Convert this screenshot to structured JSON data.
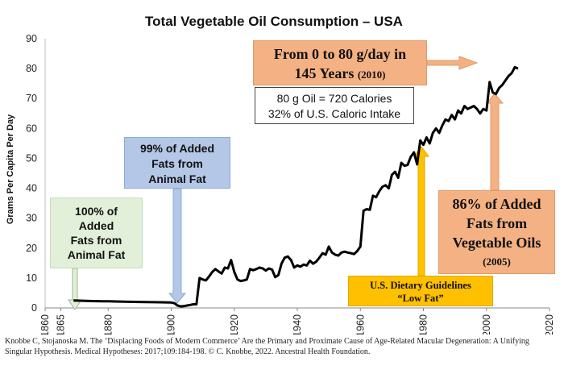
{
  "chart_data": {
    "type": "line",
    "title": "Total Vegetable Oil Consumption – USA",
    "xlabel": "",
    "ylabel": "Grams Per Capita Per Day",
    "xlim": [
      1860,
      2020
    ],
    "ylim": [
      0,
      90
    ],
    "x_ticks": [
      "1860",
      "1865",
      "1880",
      "1900",
      "1920",
      "1940",
      "1960",
      "1980",
      "2000",
      "2020"
    ],
    "y_ticks": [
      "0",
      "10",
      "20",
      "30",
      "40",
      "50",
      "60",
      "70",
      "80",
      "90"
    ],
    "grid": false,
    "series": [
      {
        "color": "#000000",
        "x": [
          1869,
          1875,
          1880,
          1885,
          1890,
          1895,
          1900,
          1901,
          1902,
          1903,
          1904,
          1905,
          1906,
          1907,
          1908,
          1909,
          1910,
          1911,
          1912,
          1913,
          1914,
          1915,
          1916,
          1917,
          1918,
          1919,
          1920,
          1921,
          1922,
          1923,
          1924,
          1925,
          1926,
          1927,
          1928,
          1929,
          1930,
          1931,
          1932,
          1933,
          1934,
          1935,
          1936,
          1937,
          1938,
          1939,
          1940,
          1941,
          1942,
          1943,
          1944,
          1945,
          1946,
          1947,
          1948,
          1949,
          1950,
          1951,
          1952,
          1953,
          1954,
          1955,
          1956,
          1957,
          1958,
          1959,
          1960,
          1961,
          1962,
          1963,
          1964,
          1965,
          1966,
          1967,
          1968,
          1969,
          1970,
          1971,
          1972,
          1973,
          1974,
          1975,
          1976,
          1977,
          1978,
          1979,
          1980,
          1981,
          1982,
          1983,
          1984,
          1985,
          1986,
          1987,
          1988,
          1989,
          1990,
          1991,
          1992,
          1993,
          1994,
          1995,
          1996,
          1997,
          1998,
          1999,
          2000,
          2001,
          2002,
          2003,
          2004,
          2005,
          2006,
          2007,
          2008,
          2009,
          2010
        ],
        "values": [
          2.5,
          2.3,
          2.2,
          2.1,
          2.0,
          1.9,
          1.8,
          1.6,
          0.8,
          0.5,
          0.6,
          0.8,
          1.0,
          1.2,
          1.2,
          10,
          9.5,
          9.2,
          10.5,
          12,
          13,
          12.2,
          11.5,
          13.5,
          13.2,
          16,
          12,
          9.5,
          9,
          9.2,
          9.5,
          13,
          12.6,
          13,
          13.5,
          13.2,
          12.5,
          13.2,
          12.8,
          10.3,
          11,
          14.8,
          16.8,
          17.2,
          16,
          13.5,
          14.2,
          13.8,
          14.5,
          14.2,
          15.8,
          14.8,
          15.5,
          16.8,
          18.3,
          17.8,
          20.5,
          18.5,
          17.8,
          17.5,
          18.5,
          18.8,
          18.5,
          18.3,
          18,
          19,
          20.5,
          32.5,
          33,
          32.8,
          37.5,
          37,
          39,
          40.5,
          41,
          40,
          44.5,
          45.5,
          43.5,
          48.5,
          47.5,
          47.8,
          50.5,
          52,
          48,
          56,
          54.5,
          57,
          55,
          58.5,
          60,
          58.5,
          61,
          63,
          62.5,
          64.5,
          63,
          66,
          65,
          67.5,
          66.5,
          67,
          67.5,
          66.5,
          65,
          66.5,
          66,
          75.5,
          72,
          71.5,
          73.5,
          74.5,
          76,
          77.5,
          78.5,
          80.5,
          80
        ]
      }
    ],
    "annotations": {
      "green_box": [
        "100% of",
        "Added",
        "Fats from",
        "Animal Fat"
      ],
      "blue_box": [
        "99% of Added",
        "Fats from",
        "Animal Fat"
      ],
      "orange_top_line1": "From 0 to 80 g/day in",
      "orange_top_line2a": "145 Years",
      "orange_top_line2b": "(2010)",
      "white_box": [
        "80 g Oil = 720 Calories",
        "32% of U.S. Caloric Intake"
      ],
      "orange_right": [
        "86% of Added",
        "Fats from",
        "Vegetable Oils"
      ],
      "orange_right_year": "(2005)",
      "yellow_box": [
        "U.S. Dietary Guidelines",
        "“Low Fat”"
      ]
    }
  },
  "colors": {
    "green": "#e2efd9",
    "blue": "#b4c7e7",
    "orange": "#f4b183",
    "yellow": "#ffc000",
    "line": "#000000"
  },
  "citation": {
    "line1": "Knobbe C,  Stojanoska M. The ‘Displacing Foods of Modern Commerce’ Are the Primary and Proximate Cause of Age-Related Macular Degeneration: A Unifying",
    "line2": "Singular Hypothesis.  Medical Hypotheses: 2017;109:184-198. © C. Knobbe, 2022. Ancestral Health Foundation."
  }
}
